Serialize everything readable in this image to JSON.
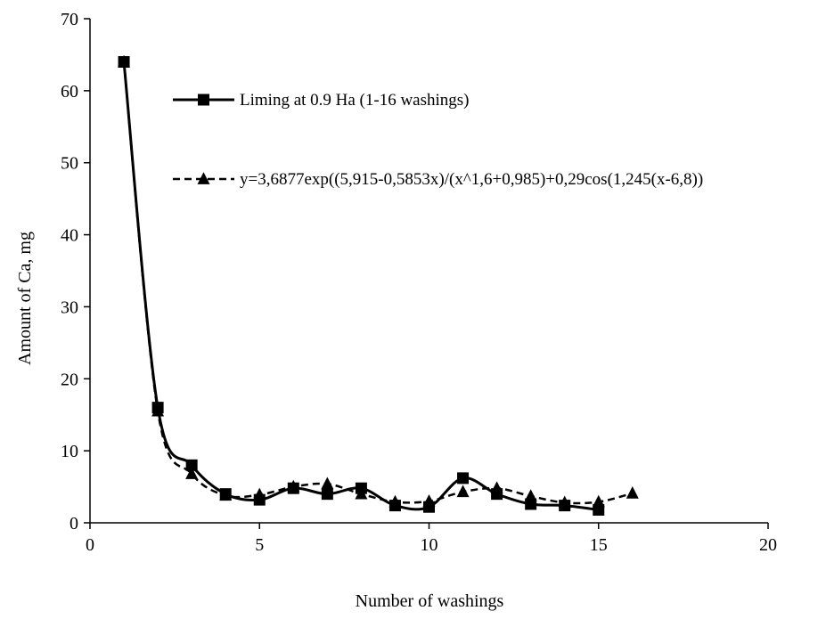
{
  "chart_data": {
    "type": "line",
    "title": "",
    "xlabel": "Number of washings",
    "ylabel": "Amount of Ca, mg",
    "xlim": [
      0,
      20
    ],
    "ylim": [
      0,
      70
    ],
    "xticks": [
      "0",
      "5",
      "10",
      "15",
      "20"
    ],
    "yticks": [
      "0",
      "10",
      "20",
      "30",
      "40",
      "50",
      "60",
      "70"
    ],
    "grid": false,
    "legend_position": "inside-top",
    "series": [
      {
        "name": "Liming at 0.9 Ha (1-16 washings)",
        "marker": "square",
        "line_style": "solid",
        "color": "#000000",
        "x": [
          1,
          2,
          3,
          4,
          5,
          6,
          7,
          8,
          9,
          10,
          11,
          12,
          13,
          14,
          15
        ],
        "y": [
          64,
          16,
          8,
          4,
          3.2,
          4.8,
          4,
          4.8,
          2.4,
          2.2,
          6.2,
          4,
          2.6,
          2.4,
          1.8
        ]
      },
      {
        "name": "y=3,6877exp((5,915-0,5853x)/(x^1,6+0,985)+0,29cos(1,245(x-6,8))",
        "marker": "triangle",
        "line_style": "dashed",
        "color": "#000000",
        "x": [
          1,
          2,
          3,
          4,
          5,
          6,
          7,
          8,
          9,
          10,
          11,
          12,
          13,
          14,
          15,
          16
        ],
        "y": [
          64,
          15.5,
          6.8,
          3.8,
          3.9,
          5,
          5.4,
          4,
          2.9,
          3,
          4.3,
          4.8,
          3.7,
          2.8,
          2.9,
          4.1
        ]
      }
    ]
  }
}
